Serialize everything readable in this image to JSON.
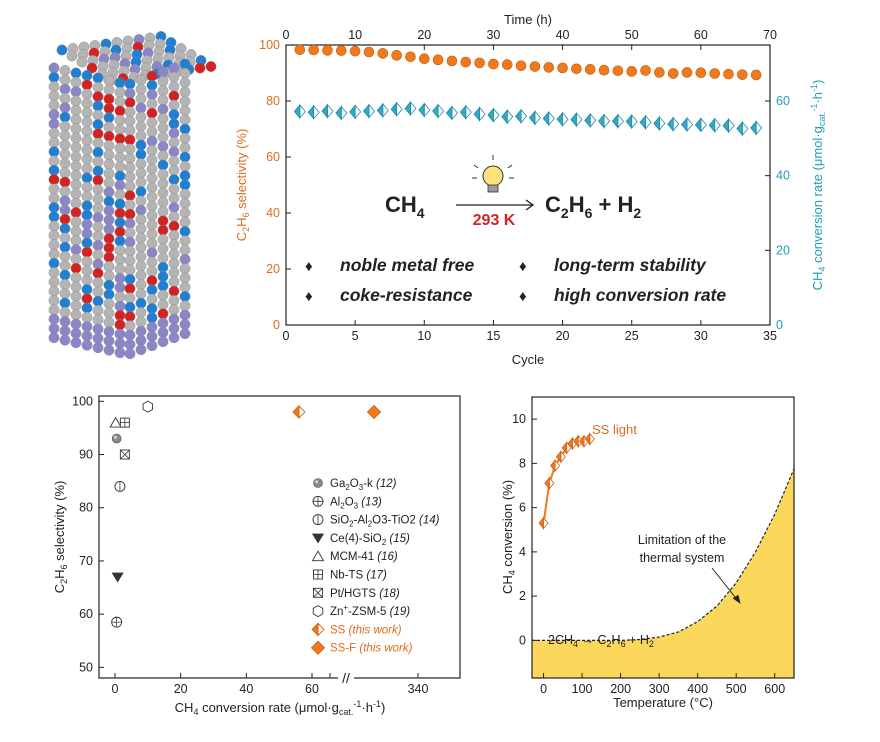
{
  "colors": {
    "orange": "#ef7a1e",
    "teal": "#34a9c4",
    "red_text": "#d82222",
    "fill_yellow": "#fbd85c",
    "crystal_grey": "#b4b4b4",
    "crystal_blue": "#1f7fd2",
    "crystal_red": "#d42222",
    "crystal_violet": "#8a86c8"
  },
  "crystal": {
    "name": "crystal-structure-illustration"
  },
  "chart_data": [
    {
      "id": "stability",
      "type": "scatter",
      "top_xlabel": "Time (h)",
      "top_xlim": [
        0,
        70
      ],
      "top_xticks": [
        "0",
        "10",
        "20",
        "30",
        "40",
        "50",
        "60",
        "70"
      ],
      "xlabel": "Cycle",
      "xlim": [
        0,
        35
      ],
      "xticks": [
        "0",
        "5",
        "10",
        "15",
        "20",
        "25",
        "30",
        "35"
      ],
      "ylabel_left": "C2H6 selectivity (%)",
      "ylim_left": [
        0,
        100
      ],
      "yticks_left": [
        "0",
        "20",
        "40",
        "60",
        "80",
        "100"
      ],
      "ylabel_right": "CH4 conversion rate (μmol·gcat.-1·h-1)",
      "ylim_right": [
        0,
        75
      ],
      "yticks_right": [
        "0",
        "20",
        "40",
        "60"
      ],
      "series": [
        {
          "name": "C2H6 selectivity",
          "axis": "left",
          "x": [
            1,
            2,
            3,
            4,
            5,
            6,
            7,
            8,
            9,
            10,
            11,
            12,
            13,
            14,
            15,
            16,
            17,
            18,
            19,
            20,
            21,
            22,
            23,
            24,
            25,
            26,
            27,
            28,
            29,
            30,
            31,
            32,
            33,
            34
          ],
          "values": [
            98.3,
            98.2,
            98.1,
            98.0,
            97.8,
            97.5,
            97.0,
            96.3,
            95.8,
            95.1,
            94.7,
            94.3,
            93.9,
            93.6,
            93.2,
            93.0,
            92.6,
            92.3,
            92.0,
            91.8,
            91.5,
            91.3,
            91.0,
            90.8,
            90.6,
            90.9,
            90.2,
            89.8,
            90.2,
            90.1,
            89.8,
            89.6,
            89.4,
            89.3
          ]
        },
        {
          "name": "CH4 conversion rate",
          "axis": "right",
          "x": [
            1,
            2,
            3,
            4,
            5,
            6,
            7,
            8,
            9,
            10,
            11,
            12,
            13,
            14,
            15,
            16,
            17,
            18,
            19,
            20,
            21,
            22,
            23,
            24,
            25,
            26,
            27,
            28,
            29,
            30,
            31,
            32,
            33,
            34
          ],
          "values": [
            57.2,
            57.0,
            57.3,
            56.8,
            57.1,
            57.3,
            57.5,
            57.8,
            58.0,
            57.6,
            57.3,
            56.8,
            57.0,
            56.5,
            56.2,
            55.8,
            55.9,
            55.5,
            55.3,
            55.1,
            55.0,
            54.8,
            54.6,
            54.6,
            54.5,
            54.3,
            54.0,
            53.8,
            53.7,
            53.6,
            53.5,
            53.4,
            52.6,
            52.8
          ]
        }
      ],
      "annotations": {
        "reactant": "CH",
        "reactant_sub": "4",
        "condition": "293 K",
        "product_a": "C",
        "product_a_sub1": "2",
        "product_a_mid": "H",
        "product_a_sub2": "6",
        "product_plus": " + H",
        "product_b_sub": "2",
        "bullet": "♦",
        "features": [
          "noble metal free",
          "long-term stability",
          "coke-resistance",
          "high conversion rate"
        ]
      }
    },
    {
      "id": "comparison",
      "type": "scatter",
      "xlabel": "CH4 conversion rate (μmol·gcat.-1·h-1)",
      "xticks": [
        "0",
        "20",
        "40",
        "60",
        "340"
      ],
      "axis_break": "//",
      "break_tick_after": "320",
      "ylabel": "C2H6 selectivity (%)",
      "ylim": [
        48,
        101
      ],
      "yticks": [
        "50",
        "60",
        "70",
        "80",
        "90",
        "100"
      ],
      "legend": [
        {
          "symbol": "sphere",
          "name": "Ga",
          "sub": "2",
          "mid": "O",
          "sub2": "3",
          "tail": "-k",
          "ref": "(12)"
        },
        {
          "symbol": "circle-plus",
          "name": "Al",
          "sub": "2",
          "mid": "O",
          "sub2": "3",
          "tail": "",
          "ref": "(13)"
        },
        {
          "symbol": "circle-bar",
          "name": "SiO",
          "sub": "2",
          "mid": "-Al",
          "sub2": "2",
          "tail": "O3-TiO2",
          "ref": "(14)"
        },
        {
          "symbol": "triangle-down",
          "name": "Ce(4)-SiO",
          "sub": "2",
          "mid": "",
          "sub2": "",
          "tail": "",
          "ref": "(15)"
        },
        {
          "symbol": "triangle-up",
          "name": "MCM-41",
          "sub": "",
          "mid": "",
          "sub2": "",
          "tail": "",
          "ref": "(16)"
        },
        {
          "symbol": "square-plus",
          "name": "Nb-TS",
          "sub": "",
          "mid": "",
          "sub2": "",
          "tail": "",
          "ref": "(17)"
        },
        {
          "symbol": "square-x",
          "name": "Pt/HGTS",
          "sub": "",
          "mid": "",
          "sub2": "",
          "tail": "",
          "ref": "(18)"
        },
        {
          "symbol": "hexagon",
          "name": "Zn",
          "sub": "+",
          "mid": "-ZSM-5",
          "sub2": "",
          "tail": "",
          "ref": "(19)"
        },
        {
          "symbol": "diamond-half",
          "name": "SS",
          "sub": "",
          "mid": "",
          "sub2": "",
          "tail": "",
          "ref": "(this work)"
        },
        {
          "symbol": "diamond",
          "name": "SS-F",
          "sub": "",
          "mid": "",
          "sub2": "",
          "tail": "",
          "ref": "(this work)"
        }
      ],
      "points": [
        {
          "symbol": "sphere",
          "x": 0.5,
          "y": 93
        },
        {
          "symbol": "circle-plus",
          "x": 0.5,
          "y": 58.5
        },
        {
          "symbol": "circle-bar",
          "x": 1.5,
          "y": 84
        },
        {
          "symbol": "triangle-down",
          "x": 0.8,
          "y": 67
        },
        {
          "symbol": "triangle-up",
          "x": 0.2,
          "y": 96
        },
        {
          "symbol": "square-plus",
          "x": 3.0,
          "y": 96
        },
        {
          "symbol": "square-x",
          "x": 3.0,
          "y": 90
        },
        {
          "symbol": "hexagon",
          "x": 10.0,
          "y": 99
        },
        {
          "symbol": "diamond-half",
          "x": 56.0,
          "y": 98
        },
        {
          "symbol": "diamond",
          "x": 330.0,
          "y": 98
        }
      ]
    },
    {
      "id": "temperature",
      "type": "line",
      "xlabel": "Temperature (°C)",
      "xlim": [
        -30,
        650
      ],
      "xticks": [
        "0",
        "100",
        "200",
        "300",
        "400",
        "500",
        "600"
      ],
      "ylabel": "CH4 conversion (%)",
      "ylim": [
        -1.7,
        11
      ],
      "yticks": [
        "0",
        "2",
        "4",
        "6",
        "8",
        "10"
      ],
      "series": [
        {
          "name": "SS light",
          "x": [
            0,
            15,
            30,
            45,
            60,
            75,
            90,
            105,
            120
          ],
          "values": [
            5.3,
            7.1,
            7.9,
            8.3,
            8.7,
            8.9,
            9.0,
            9.0,
            9.1
          ]
        },
        {
          "name": "Thermal limit",
          "x": [
            0,
            100,
            200,
            250,
            300,
            350,
            400,
            450,
            500,
            550,
            600,
            650
          ],
          "values": [
            0.0,
            0.0,
            0.0,
            0.04,
            0.15,
            0.38,
            0.85,
            1.55,
            2.6,
            4.0,
            5.7,
            7.75
          ]
        }
      ],
      "annotations": {
        "series_label": "SS light",
        "limit_line1": "Limitation of the",
        "limit_line2": "thermal system",
        "reaction": "2CH",
        "reaction_sub1": "4",
        "reaction_mid": " → C",
        "reaction_sub2": "2",
        "reaction_h": "H",
        "reaction_sub3": "6",
        "reaction_tail": " + H",
        "reaction_sub4": "2"
      }
    }
  ]
}
